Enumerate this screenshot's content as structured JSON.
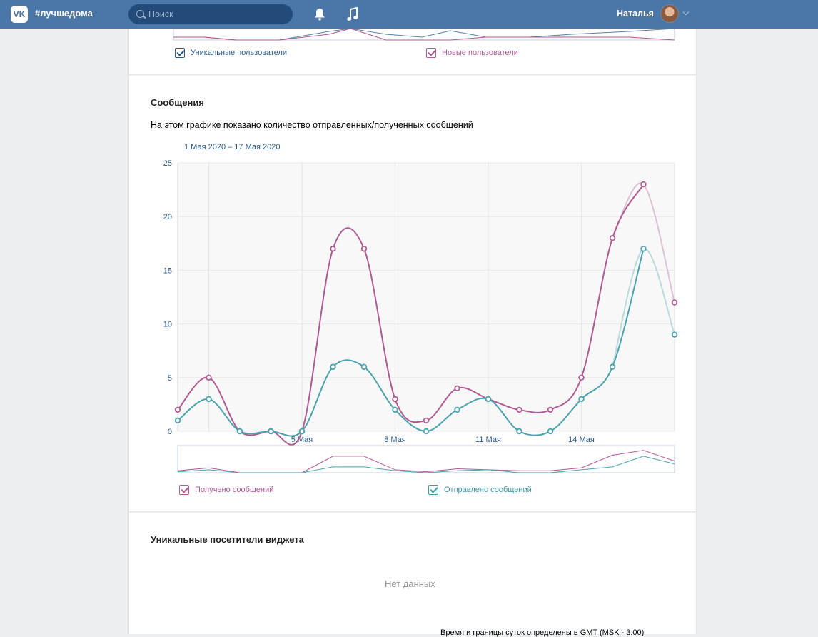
{
  "header": {
    "brand": "#лучшедома",
    "search_placeholder": "Поиск",
    "user_name": "Наталья"
  },
  "top_chart": {
    "legend": [
      "Уникальные пользователи",
      "Новые пользователи"
    ]
  },
  "messages_section": {
    "title": "Сообщения",
    "description": "На этом графике показано количество отправленных/полученных сообщений",
    "range": "1 Мая 2020 – 17 Мая 2020",
    "legend": [
      "Получено сообщений",
      "Отправлено сообщений"
    ]
  },
  "widget_section": {
    "title": "Уникальные посетители виджета",
    "empty_text": "Нет данных",
    "footnote": "Время и границы суток определены в GMT (MSK - 3:00)"
  },
  "colors": {
    "received": "#b05a93",
    "sent": "#4aa3ad",
    "header": "#4a76a8"
  },
  "chart_data": {
    "type": "line",
    "x": [
      "1 Мая",
      "2 Мая",
      "3 Мая",
      "4 Мая",
      "5 Мая",
      "6 Мая",
      "7 Мая",
      "8 Мая",
      "9 Мая",
      "10 Мая",
      "11 Мая",
      "12 Мая",
      "13 Мая",
      "14 Мая",
      "15 Мая",
      "16 Мая",
      "17 Мая"
    ],
    "x_tick_labels": [
      "5 Мая",
      "8 Мая",
      "11 Мая",
      "14 Мая"
    ],
    "y_ticks": [
      "0",
      "5",
      "10",
      "15",
      "20",
      "25"
    ],
    "ylim": [
      0,
      25
    ],
    "series": [
      {
        "name": "Получено сообщений",
        "values": [
          2,
          5,
          0,
          0,
          0,
          17,
          17,
          3,
          1,
          4,
          3,
          2,
          2,
          5,
          18,
          23,
          12
        ]
      },
      {
        "name": "Отправлено сообщений",
        "values": [
          1,
          3,
          0,
          0,
          0,
          6,
          6,
          2,
          0,
          2,
          3,
          0,
          0,
          3,
          6,
          17,
          9
        ]
      }
    ],
    "grid": true,
    "legend_placement": "bottom"
  }
}
